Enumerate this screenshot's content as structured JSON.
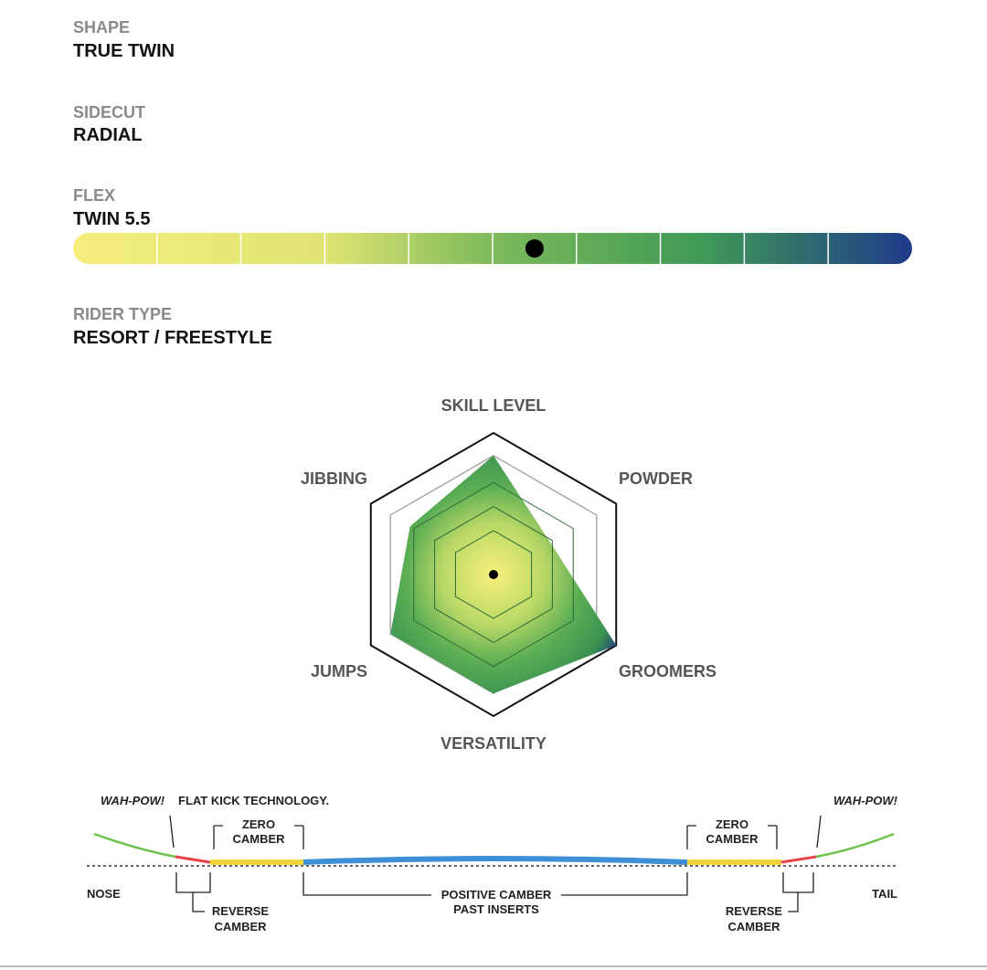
{
  "specs": [
    {
      "label": "SHAPE",
      "value": "TRUE TWIN"
    },
    {
      "label": "SIDECUT",
      "value": "RADIAL"
    },
    {
      "label": "FLEX",
      "value": "TWIN 5.5"
    },
    {
      "label": "RIDER TYPE",
      "value": "RESORT / FREESTYLE"
    }
  ],
  "flex": {
    "value": 5.5,
    "range": [
      0,
      10
    ]
  },
  "radar": {
    "axes": [
      "SKILL LEVEL",
      "POWDER",
      "GROOMERS",
      "VERSATILITY",
      "JUMPS",
      "JIBBING"
    ],
    "values": [
      4.2,
      2.3,
      5,
      4.2,
      4.2,
      3.4
    ],
    "max": 5
  },
  "profile": {
    "wah_pow_left": "WAH-POW!",
    "flat_kick": "FLAT KICK TECHNOLOGY.",
    "wah_pow_right": "WAH-POW!",
    "zero_camber": [
      "ZERO",
      "CAMBER"
    ],
    "nose": "NOSE",
    "tail": "TAIL",
    "reverse_camber": [
      "REVERSE",
      "CAMBER"
    ],
    "positive_camber": [
      "POSITIVE CAMBER",
      "PAST INSERTS"
    ]
  }
}
